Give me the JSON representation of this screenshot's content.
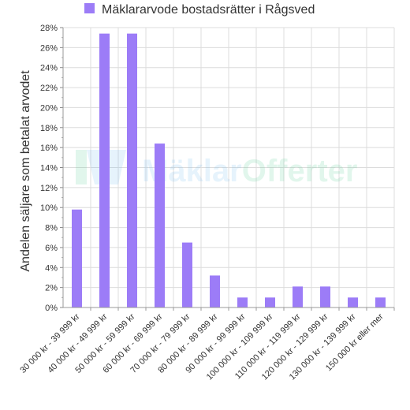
{
  "chart_data": {
    "type": "bar",
    "title": "",
    "xlabel": "",
    "ylabel": "Andelen säljare som betalat arvodet",
    "legend": {
      "position": "top-center",
      "entries": [
        {
          "name": "Mäklararvode bostadsrätter i Rågsved",
          "color": "#9c7cf7"
        }
      ]
    },
    "categories": [
      "30 000 kr - 39 999 kr",
      "40 000 kr - 49 999 kr",
      "50 000 kr - 59 999 kr",
      "60 000 kr - 69 999 kr",
      "70 000 kr - 79 999 kr",
      "80 000 kr - 89 999 kr",
      "90 000 kr - 99 999 kr",
      "100 000 kr - 109 999 kr",
      "110 000 kr - 119 999 kr",
      "120 000 kr - 129 999 kr",
      "130 000 kr - 139 999 kr",
      "150 000 kr eller mer"
    ],
    "series": [
      {
        "name": "Mäklararvode bostadsrätter i Rågsved",
        "color": "#9c7cf7",
        "values": [
          9.8,
          27.4,
          27.4,
          16.4,
          6.5,
          3.2,
          1.0,
          1.0,
          2.1,
          2.1,
          1.0,
          1.0
        ]
      }
    ],
    "yticks": [
      "0%",
      "2%",
      "4%",
      "6%",
      "8%",
      "10%",
      "12%",
      "14%",
      "16%",
      "18%",
      "20%",
      "22%",
      "24%",
      "26%",
      "28%"
    ],
    "ylim": [
      0,
      28
    ],
    "grid": true,
    "watermark": "MäklarOfferter"
  }
}
